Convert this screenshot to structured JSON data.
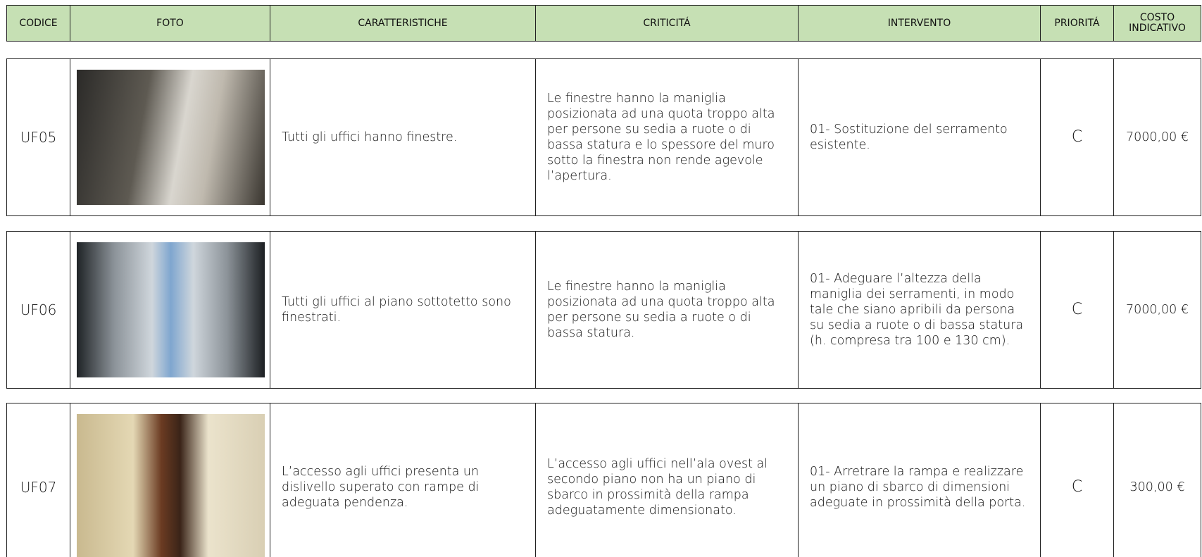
{
  "header": {
    "columns": [
      "CODICE",
      "FOTO",
      "CARATTERISTICHE",
      "CRITICITÁ",
      "INTERVENTO",
      "PRIORITÁ",
      "COSTO INDICATIVO"
    ]
  },
  "rows": [
    {
      "code": "UF05",
      "characteristics": "Tutti gli uffici hanno finestre.",
      "criticality": "Le finestre hanno la maniglia posizionata ad una quota troppo alta per persone su sedia a ruote o di bassa statura e lo spessore del muro sotto la finestra non rende agevole l’apertura.",
      "intervention": "01- Sostituzione del serramento esistente.",
      "priority": "C",
      "cost": "7000,00 €"
    },
    {
      "code": "UF06",
      "characteristics": "Tutti gli uffici al piano sottotetto sono finestrati.",
      "criticality": "Le finestre hanno la maniglia posizionata ad una quota troppo alta per persone su sedia a ruote o di bassa statura.",
      "intervention": "01- Adeguare l’altezza della maniglia dei serramenti, in modo tale che siano apribili da persona su sedia a ruote o di bassa statura (h. compresa tra 100 e 130 cm).",
      "priority": "C",
      "cost": "7000,00 €"
    },
    {
      "code": "UF07",
      "characteristics": "L’accesso agli uffici presenta un dislivello superato con rampe di adeguata pendenza.",
      "criticality": "L’accesso agli uffici nell’ala ovest al secondo piano non ha un piano di sbarco in prossimità della rampa adeguatamente dimensionato.",
      "intervention": "01- Arretrare la rampa e realizzare un piano di sbarco di dimensioni adeguate in prossimità della porta.",
      "priority": "C",
      "cost": "300,00 €"
    }
  ]
}
